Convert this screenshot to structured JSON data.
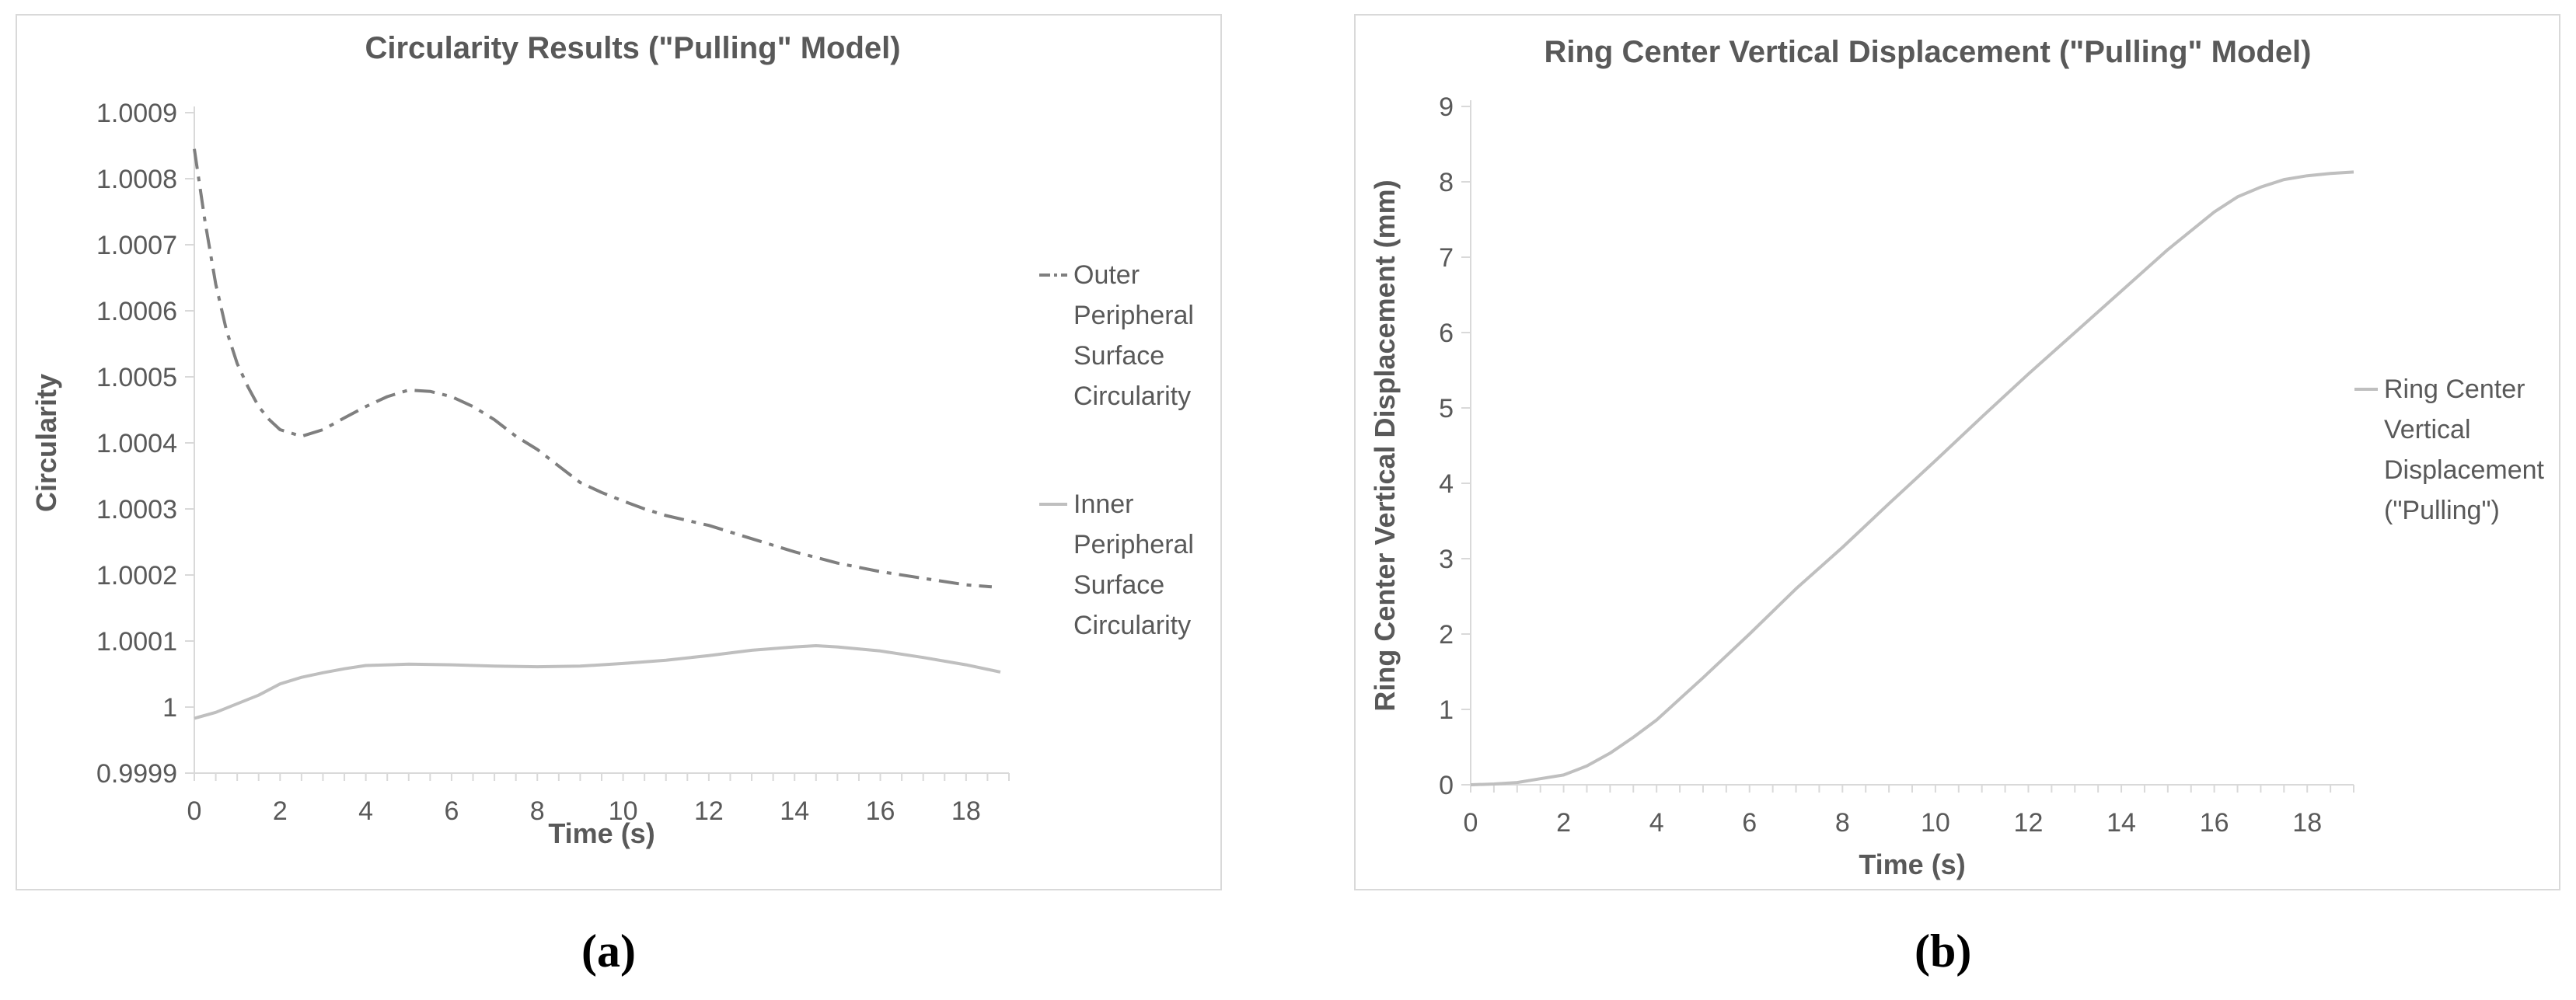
{
  "chart_data": [
    {
      "type": "line",
      "title": "Circularity Results (\"Pulling\" Model)",
      "xlabel": "Time (s)",
      "ylabel": "Circularity",
      "xlim": [
        0,
        19
      ],
      "ylim": [
        0.9999,
        1.0009
      ],
      "x_ticks": [
        "0",
        "2",
        "4",
        "6",
        "8",
        "10",
        "12",
        "14",
        "16",
        "18"
      ],
      "y_ticks": [
        "0.9999",
        "1",
        "1.0001",
        "1.0002",
        "1.0003",
        "1.0004",
        "1.0005",
        "1.0006",
        "1.0007",
        "1.0008",
        "1.0009"
      ],
      "legend_position": "right",
      "series": [
        {
          "name": "Outer Peripheral Surface Circularity",
          "legend_lines": [
            "Outer",
            "Peripheral",
            "Surface",
            "Circularity"
          ],
          "style": "dash-dot",
          "color": "#7f7f7f",
          "x": [
            0,
            0.25,
            0.5,
            0.75,
            1,
            1.25,
            1.5,
            1.75,
            2,
            2.5,
            3,
            3.5,
            4,
            4.5,
            5,
            5.5,
            6,
            6.5,
            7,
            7.5,
            8,
            8.5,
            9,
            9.5,
            10,
            10.5,
            11,
            12,
            13,
            14,
            15,
            16,
            17,
            18,
            18.6
          ],
          "y": [
            1.000845,
            1.000735,
            1.00064,
            1.00057,
            1.00052,
            1.000485,
            1.000455,
            1.000435,
            1.00042,
            1.00041,
            1.00042,
            1.000438,
            1.000455,
            1.00047,
            1.00048,
            1.000478,
            1.00047,
            1.000455,
            1.000435,
            1.00041,
            1.00039,
            1.000365,
            1.00034,
            1.000325,
            1.000312,
            1.0003,
            1.00029,
            1.000275,
            1.000255,
            1.000235,
            1.000218,
            1.000205,
            1.000195,
            1.000185,
            1.000182
          ]
        },
        {
          "name": "Inner Peripheral Surface Circularity",
          "legend_lines": [
            "Inner",
            "Peripheral",
            "Surface",
            "Circularity"
          ],
          "style": "solid",
          "color": "#bfbfbf",
          "x": [
            0,
            0.5,
            1,
            1.5,
            2,
            2.5,
            3,
            3.5,
            4,
            5,
            6,
            7,
            8,
            9,
            10,
            11,
            12,
            13,
            14,
            14.5,
            15,
            16,
            17,
            18,
            18.8
          ],
          "y": [
            0.999983,
            0.999992,
            1.000005,
            1.000018,
            1.000035,
            1.000045,
            1.000052,
            1.000058,
            1.000063,
            1.000065,
            1.000064,
            1.000062,
            1.000061,
            1.000062,
            1.000066,
            1.000071,
            1.000078,
            1.000086,
            1.000091,
            1.000093,
            1.000091,
            1.000085,
            1.000075,
            1.000064,
            1.000053
          ]
        }
      ],
      "sub_label": "(a)"
    },
    {
      "type": "line",
      "title": "Ring Center Vertical Displacement (\"Pulling\" Model)",
      "xlabel": "Time (s)",
      "ylabel": "Ring Center Vertical Displacement (mm)",
      "xlim": [
        0,
        19
      ],
      "ylim": [
        0,
        9
      ],
      "x_ticks": [
        "0",
        "2",
        "4",
        "6",
        "8",
        "10",
        "12",
        "14",
        "16",
        "18"
      ],
      "y_ticks": [
        "0",
        "1",
        "2",
        "3",
        "4",
        "5",
        "6",
        "7",
        "8",
        "9"
      ],
      "legend_position": "right",
      "series": [
        {
          "name": "Ring Center Vertical Displacement (\"Pulling\")",
          "legend_lines": [
            "Ring Center",
            "Vertical",
            "Displacement",
            "(\"Pulling\")"
          ],
          "style": "solid",
          "color": "#bfbfbf",
          "x": [
            0,
            0.5,
            1,
            1.5,
            2,
            2.5,
            3,
            3.5,
            4,
            5,
            6,
            7,
            8,
            9,
            10,
            11,
            12,
            13,
            14,
            15,
            16,
            16.5,
            17,
            17.5,
            18,
            18.5,
            19
          ],
          "y": [
            0,
            0.01,
            0.03,
            0.08,
            0.13,
            0.25,
            0.42,
            0.63,
            0.86,
            1.42,
            2.0,
            2.6,
            3.15,
            3.73,
            4.3,
            4.88,
            5.45,
            6.0,
            6.55,
            7.1,
            7.6,
            7.8,
            7.93,
            8.03,
            8.08,
            8.11,
            8.13
          ]
        }
      ],
      "sub_label": "(b)"
    }
  ]
}
